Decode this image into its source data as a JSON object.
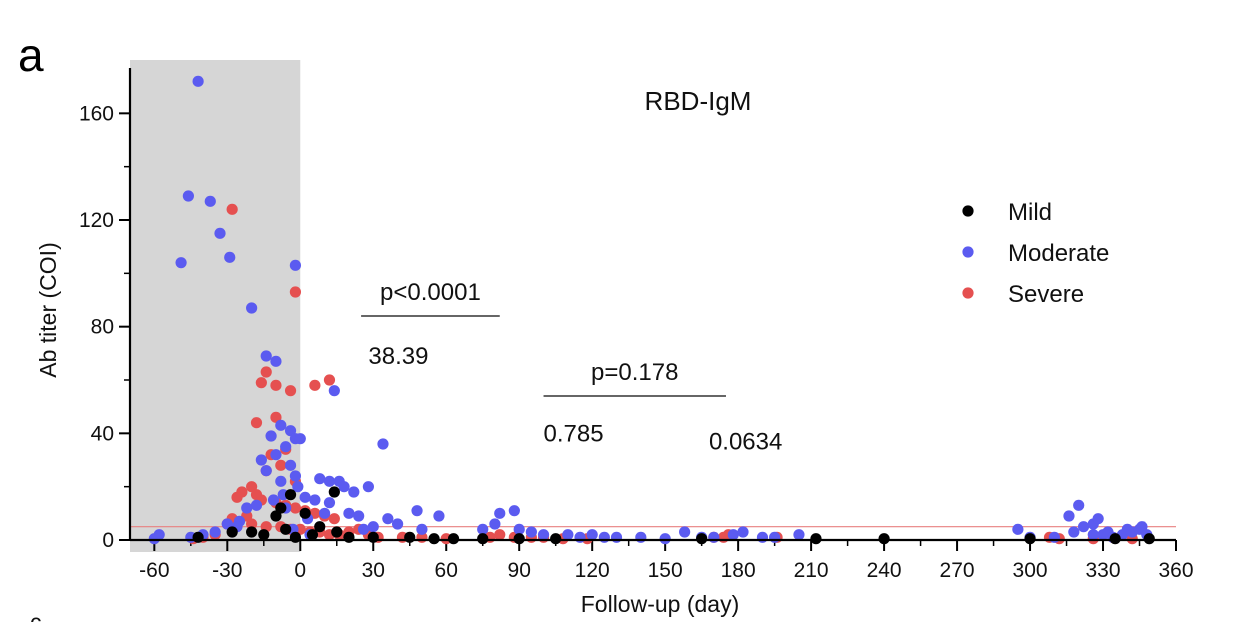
{
  "panel_label": "a",
  "next_panel_fragment": "c",
  "chart_data": {
    "type": "scatter",
    "title": "RBD-IgM",
    "xlabel": "Follow-up (day)",
    "ylabel": "Ab titer (COI)",
    "xlim": [
      -70,
      360
    ],
    "ylim": [
      0,
      180
    ],
    "x_ticks": [
      -60,
      -30,
      0,
      30,
      60,
      90,
      120,
      150,
      180,
      210,
      240,
      270,
      300,
      330,
      360
    ],
    "y_ticks": [
      0,
      40,
      80,
      120,
      160
    ],
    "x_minor_step": 15,
    "y_minor_step": 20,
    "shaded_region": {
      "x": [
        -70,
        0
      ],
      "color": "#d6d6d6"
    },
    "cutoff_line": {
      "y": 5,
      "color": "#e88080"
    },
    "legend": {
      "position": "top-right",
      "entries": [
        "Mild",
        "Moderate",
        "Severe"
      ]
    },
    "annotations": [
      {
        "text": "p<0.0001",
        "bracket_x": [
          25,
          82
        ],
        "bracket_y": 84,
        "text_y": 90
      },
      {
        "text": "p=0.178",
        "bracket_x": [
          100,
          175
        ],
        "bracket_y": 54,
        "text_y": 60
      },
      {
        "text": "38.39",
        "x": 28,
        "y": 66
      },
      {
        "text": "0.785",
        "x": 100,
        "y": 37
      },
      {
        "text": "0.0634",
        "x": 168,
        "y": 34
      }
    ],
    "series": [
      {
        "name": "Mild",
        "color": "#000000",
        "points": [
          [
            -4,
            17
          ],
          [
            14,
            18
          ],
          [
            -10,
            9
          ],
          [
            -6,
            4
          ],
          [
            5,
            2
          ],
          [
            15,
            3
          ],
          [
            -20,
            3
          ],
          [
            -2,
            1
          ],
          [
            20,
            1
          ],
          [
            30,
            1
          ],
          [
            45,
            1
          ],
          [
            55,
            0.5
          ],
          [
            63,
            0.5
          ],
          [
            75,
            0.5
          ],
          [
            90,
            0.5
          ],
          [
            105,
            0.5
          ],
          [
            165,
            0.5
          ],
          [
            212,
            0.5
          ],
          [
            240,
            0.5
          ],
          [
            300,
            0.5
          ],
          [
            335,
            0.5
          ],
          [
            349,
            0.5
          ],
          [
            -42,
            1
          ],
          [
            -15,
            2
          ],
          [
            8,
            5
          ],
          [
            -28,
            3
          ],
          [
            2,
            10
          ],
          [
            -8,
            12
          ]
        ]
      },
      {
        "name": "Moderate",
        "color": "#5b5bf0",
        "points": [
          [
            -42,
            172
          ],
          [
            -46,
            129
          ],
          [
            -37,
            127
          ],
          [
            -33,
            115
          ],
          [
            -49,
            104
          ],
          [
            -29,
            106
          ],
          [
            -2,
            103
          ],
          [
            -20,
            87
          ],
          [
            -14,
            69
          ],
          [
            -10,
            67
          ],
          [
            14,
            56
          ],
          [
            34,
            36
          ],
          [
            -8,
            43
          ],
          [
            -4,
            41
          ],
          [
            -2,
            38
          ],
          [
            -12,
            39
          ],
          [
            -6,
            35
          ],
          [
            0,
            38
          ],
          [
            -10,
            32
          ],
          [
            -16,
            30
          ],
          [
            -4,
            28
          ],
          [
            -2,
            24
          ],
          [
            -14,
            26
          ],
          [
            -8,
            22
          ],
          [
            8,
            23
          ],
          [
            12,
            22
          ],
          [
            16,
            22
          ],
          [
            18,
            20
          ],
          [
            22,
            18
          ],
          [
            28,
            20
          ],
          [
            2,
            16
          ],
          [
            6,
            15
          ],
          [
            -18,
            13
          ],
          [
            -22,
            12
          ],
          [
            -6,
            12
          ],
          [
            10,
            10
          ],
          [
            20,
            10
          ],
          [
            24,
            9
          ],
          [
            36,
            8
          ],
          [
            40,
            6
          ],
          [
            30,
            5
          ],
          [
            26,
            4
          ],
          [
            50,
            4
          ],
          [
            57,
            9
          ],
          [
            48,
            11
          ],
          [
            75,
            4
          ],
          [
            80,
            6
          ],
          [
            82,
            10
          ],
          [
            88,
            11
          ],
          [
            90,
            4
          ],
          [
            95,
            3
          ],
          [
            100,
            2
          ],
          [
            110,
            2
          ],
          [
            115,
            1
          ],
          [
            120,
            2
          ],
          [
            125,
            1
          ],
          [
            130,
            1
          ],
          [
            140,
            1
          ],
          [
            150,
            0.5
          ],
          [
            158,
            3
          ],
          [
            165,
            1
          ],
          [
            170,
            1
          ],
          [
            178,
            2
          ],
          [
            182,
            3
          ],
          [
            190,
            1
          ],
          [
            195,
            1
          ],
          [
            205,
            2
          ],
          [
            -58,
            2
          ],
          [
            -60,
            0.5
          ],
          [
            -35,
            3
          ],
          [
            -30,
            6
          ],
          [
            -25,
            7
          ],
          [
            -40,
            2
          ],
          [
            -45,
            1
          ],
          [
            -26,
            5
          ],
          [
            -3,
            4
          ],
          [
            4,
            2
          ],
          [
            3,
            8
          ],
          [
            -1,
            20
          ],
          [
            -7,
            17
          ],
          [
            -11,
            15
          ],
          [
            12,
            14
          ],
          [
            295,
            4
          ],
          [
            300,
            1
          ],
          [
            316,
            9
          ],
          [
            320,
            13
          ],
          [
            322,
            5
          ],
          [
            326,
            6
          ],
          [
            328,
            8
          ],
          [
            330,
            2
          ],
          [
            332,
            3
          ],
          [
            334,
            1
          ],
          [
            338,
            2
          ],
          [
            340,
            4
          ],
          [
            342,
            3
          ],
          [
            345,
            4
          ],
          [
            346,
            5
          ],
          [
            348,
            2
          ],
          [
            310,
            1
          ],
          [
            326,
            2
          ],
          [
            318,
            3
          ]
        ]
      },
      {
        "name": "Severe",
        "color": "#e55050",
        "points": [
          [
            -28,
            124
          ],
          [
            -2,
            93
          ],
          [
            -14,
            63
          ],
          [
            -16,
            59
          ],
          [
            -10,
            58
          ],
          [
            -4,
            56
          ],
          [
            6,
            58
          ],
          [
            12,
            60
          ],
          [
            -18,
            44
          ],
          [
            -10,
            46
          ],
          [
            -6,
            34
          ],
          [
            -12,
            32
          ],
          [
            -8,
            28
          ],
          [
            -14,
            26
          ],
          [
            -2,
            22
          ],
          [
            -20,
            20
          ],
          [
            -24,
            18
          ],
          [
            -18,
            17
          ],
          [
            -26,
            16
          ],
          [
            -16,
            15
          ],
          [
            -10,
            14
          ],
          [
            -6,
            13
          ],
          [
            -2,
            12
          ],
          [
            2,
            11
          ],
          [
            6,
            10
          ],
          [
            10,
            9
          ],
          [
            14,
            8
          ],
          [
            -22,
            9
          ],
          [
            -28,
            8
          ],
          [
            -30,
            6
          ],
          [
            -20,
            6
          ],
          [
            -14,
            5
          ],
          [
            -8,
            5
          ],
          [
            -4,
            4
          ],
          [
            0,
            4
          ],
          [
            4,
            3
          ],
          [
            8,
            3
          ],
          [
            12,
            2
          ],
          [
            16,
            2
          ],
          [
            20,
            3
          ],
          [
            24,
            4
          ],
          [
            28,
            2
          ],
          [
            32,
            1
          ],
          [
            -35,
            2
          ],
          [
            -40,
            1
          ],
          [
            -44,
            0.5
          ],
          [
            42,
            1
          ],
          [
            50,
            1
          ],
          [
            60,
            0.5
          ],
          [
            78,
            1
          ],
          [
            82,
            2
          ],
          [
            88,
            1
          ],
          [
            95,
            1
          ],
          [
            100,
            1
          ],
          [
            108,
            0.5
          ],
          [
            118,
            0.5
          ],
          [
            170,
            1
          ],
          [
            174,
            1
          ],
          [
            176,
            2
          ],
          [
            196,
            1
          ],
          [
            308,
            1
          ],
          [
            312,
            0.5
          ],
          [
            326,
            0.5
          ],
          [
            334,
            1
          ],
          [
            342,
            0.5
          ]
        ]
      }
    ]
  }
}
